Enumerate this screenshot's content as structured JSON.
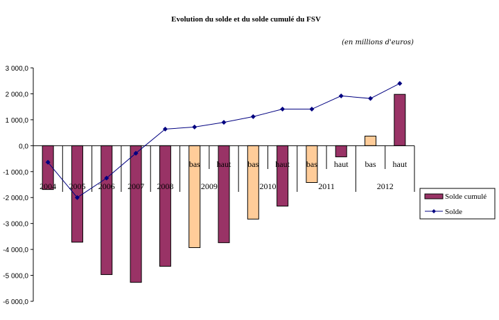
{
  "chart_data": {
    "type": "bar",
    "title": "Evolution du solde et du solde cumulé du FSV",
    "subtitle": "(en millions d'euros)",
    "xlabel": "",
    "ylabel": "",
    "ylim": [
      -6000,
      3000
    ],
    "yticks": [
      3000,
      2000,
      1000,
      0,
      -1000,
      -2000,
      -3000,
      -4000,
      -5000,
      -6000
    ],
    "ytick_labels": [
      "3 000,0",
      "2 000,0",
      "1 000,0",
      "0,0",
      "-1 000,0",
      "-2 000,0",
      "-3 000,0",
      "-4 000,0",
      "-5 000,0",
      "-6 000,0"
    ],
    "grid": false,
    "legend_position": "right",
    "categories": [
      {
        "year": "2004",
        "sub": ""
      },
      {
        "year": "2005",
        "sub": ""
      },
      {
        "year": "2006",
        "sub": ""
      },
      {
        "year": "2007",
        "sub": ""
      },
      {
        "year": "2008",
        "sub": ""
      },
      {
        "year": "2009",
        "sub": "bas"
      },
      {
        "year": "2009",
        "sub": "haut"
      },
      {
        "year": "2010",
        "sub": "bas"
      },
      {
        "year": "2010",
        "sub": "haut"
      },
      {
        "year": "2011",
        "sub": "bas"
      },
      {
        "year": "2011",
        "sub": "haut"
      },
      {
        "year": "2012",
        "sub": "bas"
      },
      {
        "year": "2012",
        "sub": "haut"
      }
    ],
    "year_groups": [
      "2004",
      "2005",
      "2006",
      "2007",
      "2008",
      "2009",
      "2010",
      "2011",
      "2012"
    ],
    "series": [
      {
        "name": "Solde cumulé",
        "kind": "bar",
        "color": "#993366",
        "alt_color": "#FFCC99",
        "values": [
          -1690,
          -3720,
          -4970,
          -5270,
          -4650,
          -3930,
          -3740,
          -2830,
          -2330,
          -1420,
          -430,
          370,
          1980
        ]
      },
      {
        "name": "Solde",
        "kind": "line",
        "color": "#000080",
        "values": [
          -640,
          -2000,
          -1250,
          -290,
          640,
          720,
          900,
          1120,
          1410,
          1410,
          1920,
          1820,
          2400
        ]
      }
    ]
  }
}
